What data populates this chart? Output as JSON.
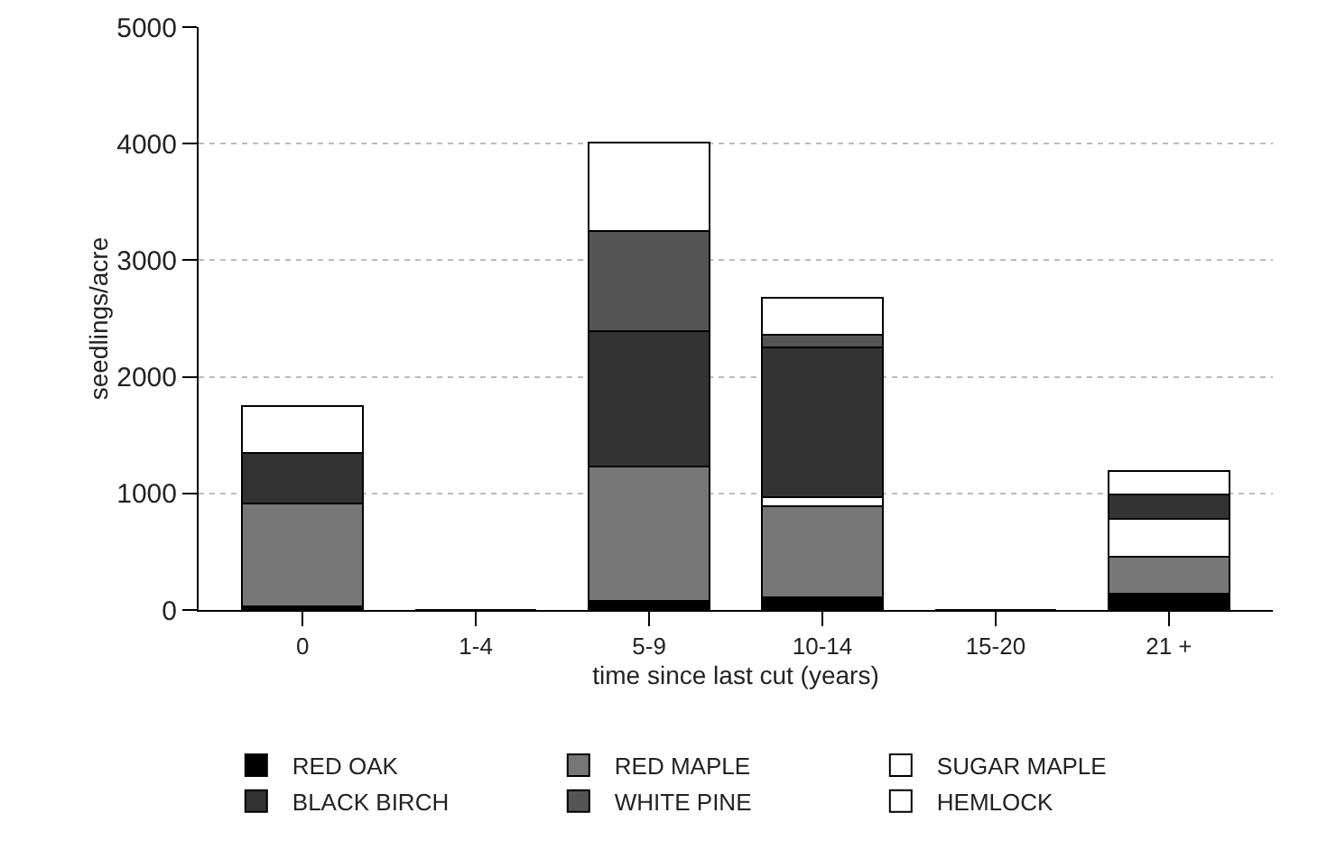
{
  "chart_data": {
    "type": "bar",
    "stacked": true,
    "xlabel": "time since last cut (years)",
    "ylabel": "seedlings/acre",
    "categories": [
      "0",
      "1-4",
      "5-9",
      "10-14",
      "15-20",
      "21 +"
    ],
    "series": [
      {
        "name": "RED OAK",
        "color": "#000000",
        "values": [
          30,
          0,
          80,
          110,
          0,
          140
        ]
      },
      {
        "name": "RED MAPLE",
        "color": "#777777",
        "values": [
          880,
          0,
          1150,
          780,
          0,
          320
        ]
      },
      {
        "name": "SUGAR MAPLE",
        "color": "#ffffff",
        "values": [
          0,
          0,
          0,
          80,
          0,
          320
        ]
      },
      {
        "name": "BLACK BIRCH",
        "color": "#333333",
        "values": [
          440,
          0,
          1160,
          1280,
          0,
          210
        ]
      },
      {
        "name": "WHITE PINE",
        "color": "#555555",
        "values": [
          0,
          0,
          860,
          110,
          0,
          0
        ]
      },
      {
        "name": "HEMLOCK",
        "color": "#ffffff",
        "values": [
          400,
          0,
          760,
          320,
          0,
          200
        ]
      }
    ],
    "ylim": [
      0,
      5000
    ],
    "yticks": [
      0,
      1000,
      2000,
      3000,
      4000,
      5000
    ],
    "grid": "y",
    "legend": "bottom"
  }
}
